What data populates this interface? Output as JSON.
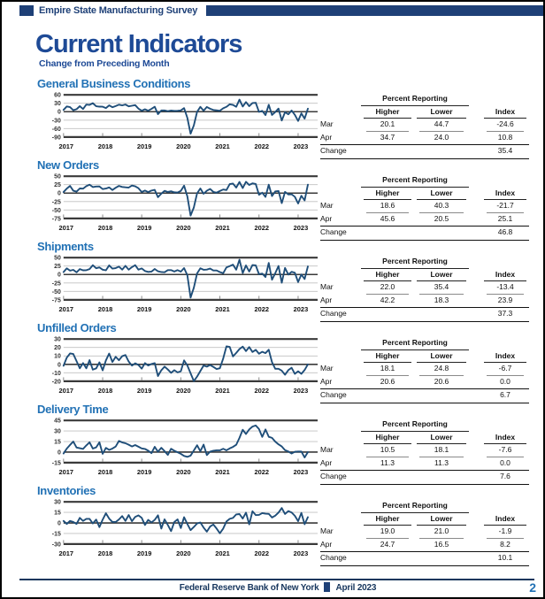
{
  "header": {
    "tab_label": "Empire State Manufacturing Survey"
  },
  "title": "Current Indicators",
  "subtitle": "Change from Preceding Month",
  "labels": {
    "percent_reporting": "Percent Reporting",
    "higher": "Higher",
    "lower": "Lower",
    "index": "Index",
    "mar": "Mar",
    "apr": "Apr",
    "change": "Change"
  },
  "footer": {
    "org": "Federal Reserve Bank of New York",
    "date": "April 2023",
    "page": "2"
  },
  "colors": {
    "navy": "#1e4077",
    "title_blue": "#1e4a96",
    "section_blue": "#2171b5",
    "line_blue": "#1f4e79",
    "grid_light": "#c0c0c0",
    "axis_dark": "#3a3a3a"
  },
  "sections": [
    {
      "title": "General Business Conditions",
      "table": {
        "mar_higher": "20.1",
        "mar_lower": "44.7",
        "mar_index": "-24.6",
        "apr_higher": "34.7",
        "apr_lower": "24.0",
        "apr_index": "10.8",
        "change_index": "35.4"
      }
    },
    {
      "title": "New Orders",
      "table": {
        "mar_higher": "18.6",
        "mar_lower": "40.3",
        "mar_index": "-21.7",
        "apr_higher": "45.6",
        "apr_lower": "20.5",
        "apr_index": "25.1",
        "change_index": "46.8"
      }
    },
    {
      "title": "Shipments",
      "table": {
        "mar_higher": "22.0",
        "mar_lower": "35.4",
        "mar_index": "-13.4",
        "apr_higher": "42.2",
        "apr_lower": "18.3",
        "apr_index": "23.9",
        "change_index": "37.3"
      }
    },
    {
      "title": "Unfilled Orders",
      "table": {
        "mar_higher": "18.1",
        "mar_lower": "24.8",
        "mar_index": "-6.7",
        "apr_higher": "20.6",
        "apr_lower": "20.6",
        "apr_index": "0.0",
        "change_index": "6.7"
      }
    },
    {
      "title": "Delivery Time",
      "table": {
        "mar_higher": "10.5",
        "mar_lower": "18.1",
        "mar_index": "-7.6",
        "apr_higher": "11.3",
        "apr_lower": "11.3",
        "apr_index": "0.0",
        "change_index": "7.6"
      }
    },
    {
      "title": "Inventories",
      "table": {
        "mar_higher": "19.0",
        "mar_lower": "21.0",
        "mar_index": "-1.9",
        "apr_higher": "24.7",
        "apr_lower": "16.5",
        "apr_index": "8.2",
        "change_index": "10.1"
      }
    }
  ],
  "chart_data": [
    {
      "type": "line",
      "title": "General Business Conditions",
      "x_start": "2017-01",
      "x_end": "2023-04",
      "x_tick_labels": [
        "2017",
        "2018",
        "2019",
        "2020",
        "2021",
        "2022",
        "2023"
      ],
      "ylim": [
        -90,
        60
      ],
      "yticks": [
        60,
        30,
        0,
        -30,
        -60,
        -90
      ],
      "grid": true,
      "legend": "none",
      "values": [
        6.5,
        18.7,
        16.4,
        5.2,
        9.0,
        19.8,
        9.8,
        25.2,
        24.4,
        30.2,
        19.4,
        18.0,
        17.7,
        13.1,
        22.5,
        15.8,
        20.1,
        25.0,
        22.6,
        25.6,
        19.0,
        21.1,
        23.3,
        10.9,
        3.9,
        8.8,
        3.7,
        10.1,
        17.8,
        -8.6,
        4.3,
        4.8,
        2.0,
        4.0,
        2.9,
        3.5,
        4.8,
        12.9,
        -21.5,
        -78.2,
        -48.5,
        -0.2,
        17.2,
        3.7,
        17.0,
        10.5,
        6.3,
        4.9,
        3.5,
        12.1,
        17.4,
        26.3,
        24.3,
        17.4,
        43.0,
        18.3,
        34.3,
        19.8,
        30.9,
        31.9,
        -0.7,
        3.1,
        -11.8,
        24.6,
        -11.6,
        -1.2,
        11.1,
        -31.3,
        -1.5,
        -9.1,
        4.5,
        -11.2,
        -32.9,
        -5.8,
        -24.6,
        10.8
      ]
    },
    {
      "type": "line",
      "title": "New Orders",
      "x_start": "2017-01",
      "x_end": "2023-04",
      "x_tick_labels": [
        "2017",
        "2018",
        "2019",
        "2020",
        "2021",
        "2022",
        "2023"
      ],
      "ylim": [
        -75,
        50
      ],
      "yticks": [
        50,
        25,
        0,
        -25,
        -50,
        -75
      ],
      "grid": true,
      "legend": "none",
      "values": [
        3.1,
        13.5,
        21.3,
        7.0,
        4.4,
        13.8,
        13.4,
        20.6,
        24.9,
        18.0,
        19.5,
        19.7,
        11.9,
        13.5,
        16.8,
        9.0,
        16.0,
        21.3,
        18.2,
        17.1,
        16.5,
        22.5,
        20.4,
        14.5,
        3.5,
        7.5,
        3.0,
        7.5,
        9.7,
        -12.0,
        -1.5,
        6.7,
        3.5,
        5.5,
        2.4,
        1.7,
        6.6,
        22.1,
        -9.3,
        -66.3,
        -42.4,
        -0.6,
        13.9,
        -1.7,
        7.1,
        12.3,
        3.7,
        1.4,
        6.2,
        10.8,
        9.1,
        26.9,
        28.3,
        16.3,
        33.2,
        14.8,
        33.7,
        24.3,
        28.8,
        27.1,
        -5.0,
        1.4,
        -11.2,
        25.1,
        -8.8,
        5.3,
        6.2,
        -29.6,
        3.7,
        -3.8,
        -3.3,
        -11.0,
        -30.6,
        -7.8,
        -21.7,
        25.1
      ]
    },
    {
      "type": "line",
      "title": "Shipments",
      "x_start": "2017-01",
      "x_end": "2023-04",
      "x_tick_labels": [
        "2017",
        "2018",
        "2019",
        "2020",
        "2021",
        "2022",
        "2023"
      ],
      "ylim": [
        -75,
        50
      ],
      "yticks": [
        50,
        25,
        0,
        -25,
        -50,
        -75
      ],
      "grid": true,
      "legend": "none",
      "values": [
        7.3,
        18.2,
        11.5,
        13.7,
        6.6,
        16.1,
        12.4,
        12.8,
        16.2,
        27.5,
        18.4,
        21.0,
        14.4,
        12.4,
        27.0,
        17.5,
        19.1,
        23.5,
        14.6,
        25.7,
        14.3,
        22.0,
        27.6,
        14.4,
        17.9,
        10.4,
        7.7,
        8.6,
        16.3,
        9.7,
        7.2,
        6.8,
        13.0,
        13.0,
        8.8,
        13.0,
        8.6,
        18.9,
        -1.7,
        -68.1,
        -39.0,
        3.3,
        18.5,
        14.1,
        14.7,
        17.8,
        12.1,
        12.1,
        7.3,
        4.0,
        21.1,
        25.0,
        29.1,
        14.2,
        43.8,
        4.4,
        26.9,
        8.9,
        28.2,
        27.1,
        1.0,
        2.9,
        -7.4,
        34.5,
        -15.4,
        4.0,
        25.3,
        -24.1,
        19.6,
        -0.3,
        8.0,
        5.3,
        -22.4,
        0.1,
        -13.4,
        23.9
      ]
    },
    {
      "type": "line",
      "title": "Unfilled Orders",
      "x_start": "2017-01",
      "x_end": "2023-04",
      "x_tick_labels": [
        "2017",
        "2018",
        "2019",
        "2020",
        "2021",
        "2022",
        "2023"
      ],
      "ylim": [
        -20,
        30
      ],
      "yticks": [
        30,
        20,
        10,
        0,
        -10,
        -20
      ],
      "grid": true,
      "legend": "none",
      "values": [
        -1.7,
        8.0,
        12.9,
        12.3,
        3.9,
        -4.7,
        1.6,
        -4.7,
        5.0,
        -6.3,
        -4.8,
        2.4,
        -7.1,
        4.7,
        12.8,
        2.8,
        9.0,
        4.9,
        9.7,
        11.0,
        3.3,
        -1.5,
        1.3,
        -0.7,
        -5.1,
        1.5,
        -1.4,
        0.4,
        1.5,
        -13.9,
        -7.0,
        -2.7,
        -6.0,
        -10.0,
        -6.9,
        -9.5,
        -8.2,
        4.7,
        -1.2,
        -10.5,
        -19.8,
        -14.5,
        -7.9,
        -1.4,
        -2.7,
        -0.7,
        -3.0,
        -5.5,
        -4.6,
        7.0,
        21.4,
        20.7,
        9.4,
        13.5,
        18.1,
        21.0,
        15.7,
        20.5,
        14.7,
        17.2,
        12.6,
        14.9,
        13.3,
        17.3,
        2.6,
        -5.2,
        -5.2,
        -7.5,
        -12.3,
        -6.8,
        -4.1,
        -11.2,
        -8.2,
        -11.3,
        -6.7,
        0.0
      ]
    },
    {
      "type": "line",
      "title": "Delivery Time",
      "x_start": "2017-01",
      "x_end": "2023-04",
      "x_tick_labels": [
        "2017",
        "2018",
        "2019",
        "2020",
        "2021",
        "2022",
        "2023"
      ],
      "ylim": [
        -15,
        45
      ],
      "yticks": [
        45,
        30,
        15,
        0,
        -15
      ],
      "grid": true,
      "legend": "none",
      "values": [
        -2.0,
        5.0,
        10.3,
        15.0,
        6.5,
        5.5,
        4.5,
        9.5,
        13.9,
        5.0,
        6.7,
        13.9,
        -2.5,
        6.0,
        3.1,
        5.0,
        7.9,
        15.9,
        13.7,
        12.6,
        10.5,
        8.0,
        10.0,
        7.6,
        5.2,
        4.5,
        2.0,
        -1.5,
        7.5,
        0.5,
        6.1,
        1.4,
        -4.0,
        4.7,
        1.9,
        -0.3,
        -2.5,
        -5.5,
        -6.8,
        -5.0,
        2.2,
        9.8,
        1.3,
        10.6,
        -4.3,
        0.8,
        1.9,
        2.5,
        2.5,
        4.8,
        2.5,
        5.3,
        7.4,
        10.4,
        20.2,
        31.7,
        25.7,
        32.2,
        36.3,
        37.9,
        32.7,
        21.6,
        32.2,
        21.8,
        20.2,
        14.9,
        11.0,
        8.0,
        2.8,
        0.9,
        -2.0,
        0.5,
        0.9,
        0.9,
        -7.6,
        0.0
      ]
    },
    {
      "type": "line",
      "title": "Inventories",
      "x_start": "2017-01",
      "x_end": "2023-04",
      "x_tick_labels": [
        "2017",
        "2018",
        "2019",
        "2020",
        "2021",
        "2022",
        "2023"
      ],
      "ylim": [
        -30,
        30
      ],
      "yticks": [
        30,
        15,
        0,
        -15,
        -30
      ],
      "grid": true,
      "legend": "none",
      "values": [
        2.9,
        -1.4,
        2.9,
        1.4,
        -1.4,
        7.3,
        2.9,
        5.8,
        5.8,
        -0.8,
        4.8,
        -6.0,
        4.8,
        13.8,
        6.1,
        1.4,
        1.4,
        4.9,
        9.7,
        2.9,
        11.3,
        2.5,
        8.6,
        10.8,
        7.3,
        -2.9,
        4.4,
        0.7,
        4.4,
        10.9,
        -8.0,
        5.1,
        -2.9,
        -11.6,
        1.4,
        5.1,
        -7.3,
        8.1,
        -1.4,
        -10.2,
        -5.8,
        -0.7,
        0.6,
        -6.6,
        -12.4,
        -5.1,
        -2.2,
        -8.0,
        -14.6,
        -8.0,
        2.1,
        5.9,
        7.1,
        12.1,
        12.6,
        6.2,
        14.6,
        -2.0,
        16.6,
        11.1,
        11.5,
        14.0,
        13.1,
        12.9,
        7.8,
        10.4,
        14.8,
        21.3,
        12.7,
        16.9,
        14.9,
        10.1,
        2.5,
        14.3,
        -1.9,
        8.2
      ]
    }
  ]
}
